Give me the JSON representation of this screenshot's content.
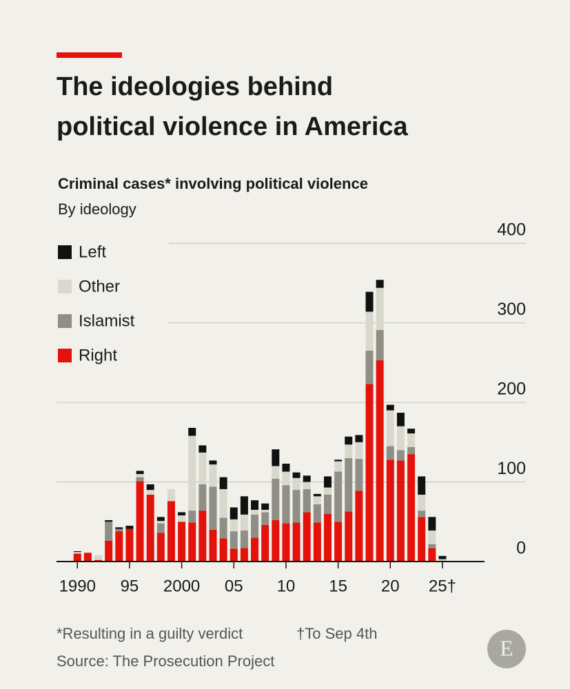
{
  "chart_data": {
    "type": "stacked_bar",
    "title_lines": [
      "The ideologies behind",
      "political violence in America"
    ],
    "subtitle": "Criminal cases* involving political violence",
    "subtitle2": "By ideology",
    "x": [
      1990,
      1991,
      1992,
      1993,
      1994,
      1995,
      1996,
      1997,
      1998,
      1999,
      2000,
      2001,
      2002,
      2003,
      2004,
      2005,
      2006,
      2007,
      2008,
      2009,
      2010,
      2011,
      2012,
      2013,
      2014,
      2015,
      2016,
      2017,
      2018,
      2019,
      2020,
      2021,
      2022,
      2023,
      2024,
      2025
    ],
    "series": [
      {
        "name": "Right",
        "color": "#e3120b",
        "values": [
          10,
          11,
          2,
          26,
          38,
          41,
          101,
          84,
          36,
          76,
          50,
          49,
          64,
          40,
          29,
          16,
          17,
          30,
          46,
          52,
          48,
          49,
          62,
          49,
          60,
          50,
          63,
          89,
          223,
          253,
          128,
          127,
          135,
          56,
          17,
          1
        ]
      },
      {
        "name": "Islamist",
        "color": "#8f8f86",
        "values": [
          0,
          0,
          0,
          24,
          3,
          0,
          5,
          0,
          12,
          0,
          0,
          15,
          33,
          54,
          26,
          22,
          22,
          29,
          16,
          52,
          48,
          41,
          29,
          23,
          24,
          63,
          67,
          40,
          42,
          38,
          17,
          13,
          9,
          8,
          5,
          0
        ]
      },
      {
        "name": "Other",
        "color": "#d9d8cc",
        "values": [
          2,
          0,
          6,
          0,
          0,
          0,
          4,
          6,
          3,
          15,
          8,
          94,
          40,
          28,
          36,
          15,
          20,
          6,
          3,
          16,
          17,
          15,
          9,
          10,
          9,
          13,
          17,
          21,
          49,
          53,
          45,
          30,
          17,
          20,
          17,
          2
        ]
      },
      {
        "name": "Left",
        "color": "#111111",
        "values": [
          1,
          0,
          0,
          2,
          2,
          4,
          4,
          7,
          5,
          0,
          4,
          10,
          9,
          5,
          15,
          15,
          23,
          12,
          8,
          21,
          10,
          7,
          8,
          3,
          14,
          2,
          10,
          9,
          25,
          10,
          7,
          17,
          6,
          23,
          17,
          4
        ]
      }
    ],
    "xlim": [
      1988,
      2033
    ],
    "xticks": [
      {
        "value": 1990,
        "label": "1990"
      },
      {
        "value": 1995,
        "label": "95"
      },
      {
        "value": 2000,
        "label": "2000"
      },
      {
        "value": 2005,
        "label": "05"
      },
      {
        "value": 2010,
        "label": "10"
      },
      {
        "value": 2015,
        "label": "15"
      },
      {
        "value": 2020,
        "label": "20"
      },
      {
        "value": 2025,
        "label": "25†"
      }
    ],
    "ylim": [
      0,
      420
    ],
    "yticks": [
      0,
      100,
      200,
      300,
      400
    ],
    "grid": true,
    "legend": "top-left",
    "notes": [
      "*Resulting in a guilty verdict",
      "†To Sep 4th"
    ],
    "source": "Source: The Prosecution Project",
    "logo": "E"
  }
}
